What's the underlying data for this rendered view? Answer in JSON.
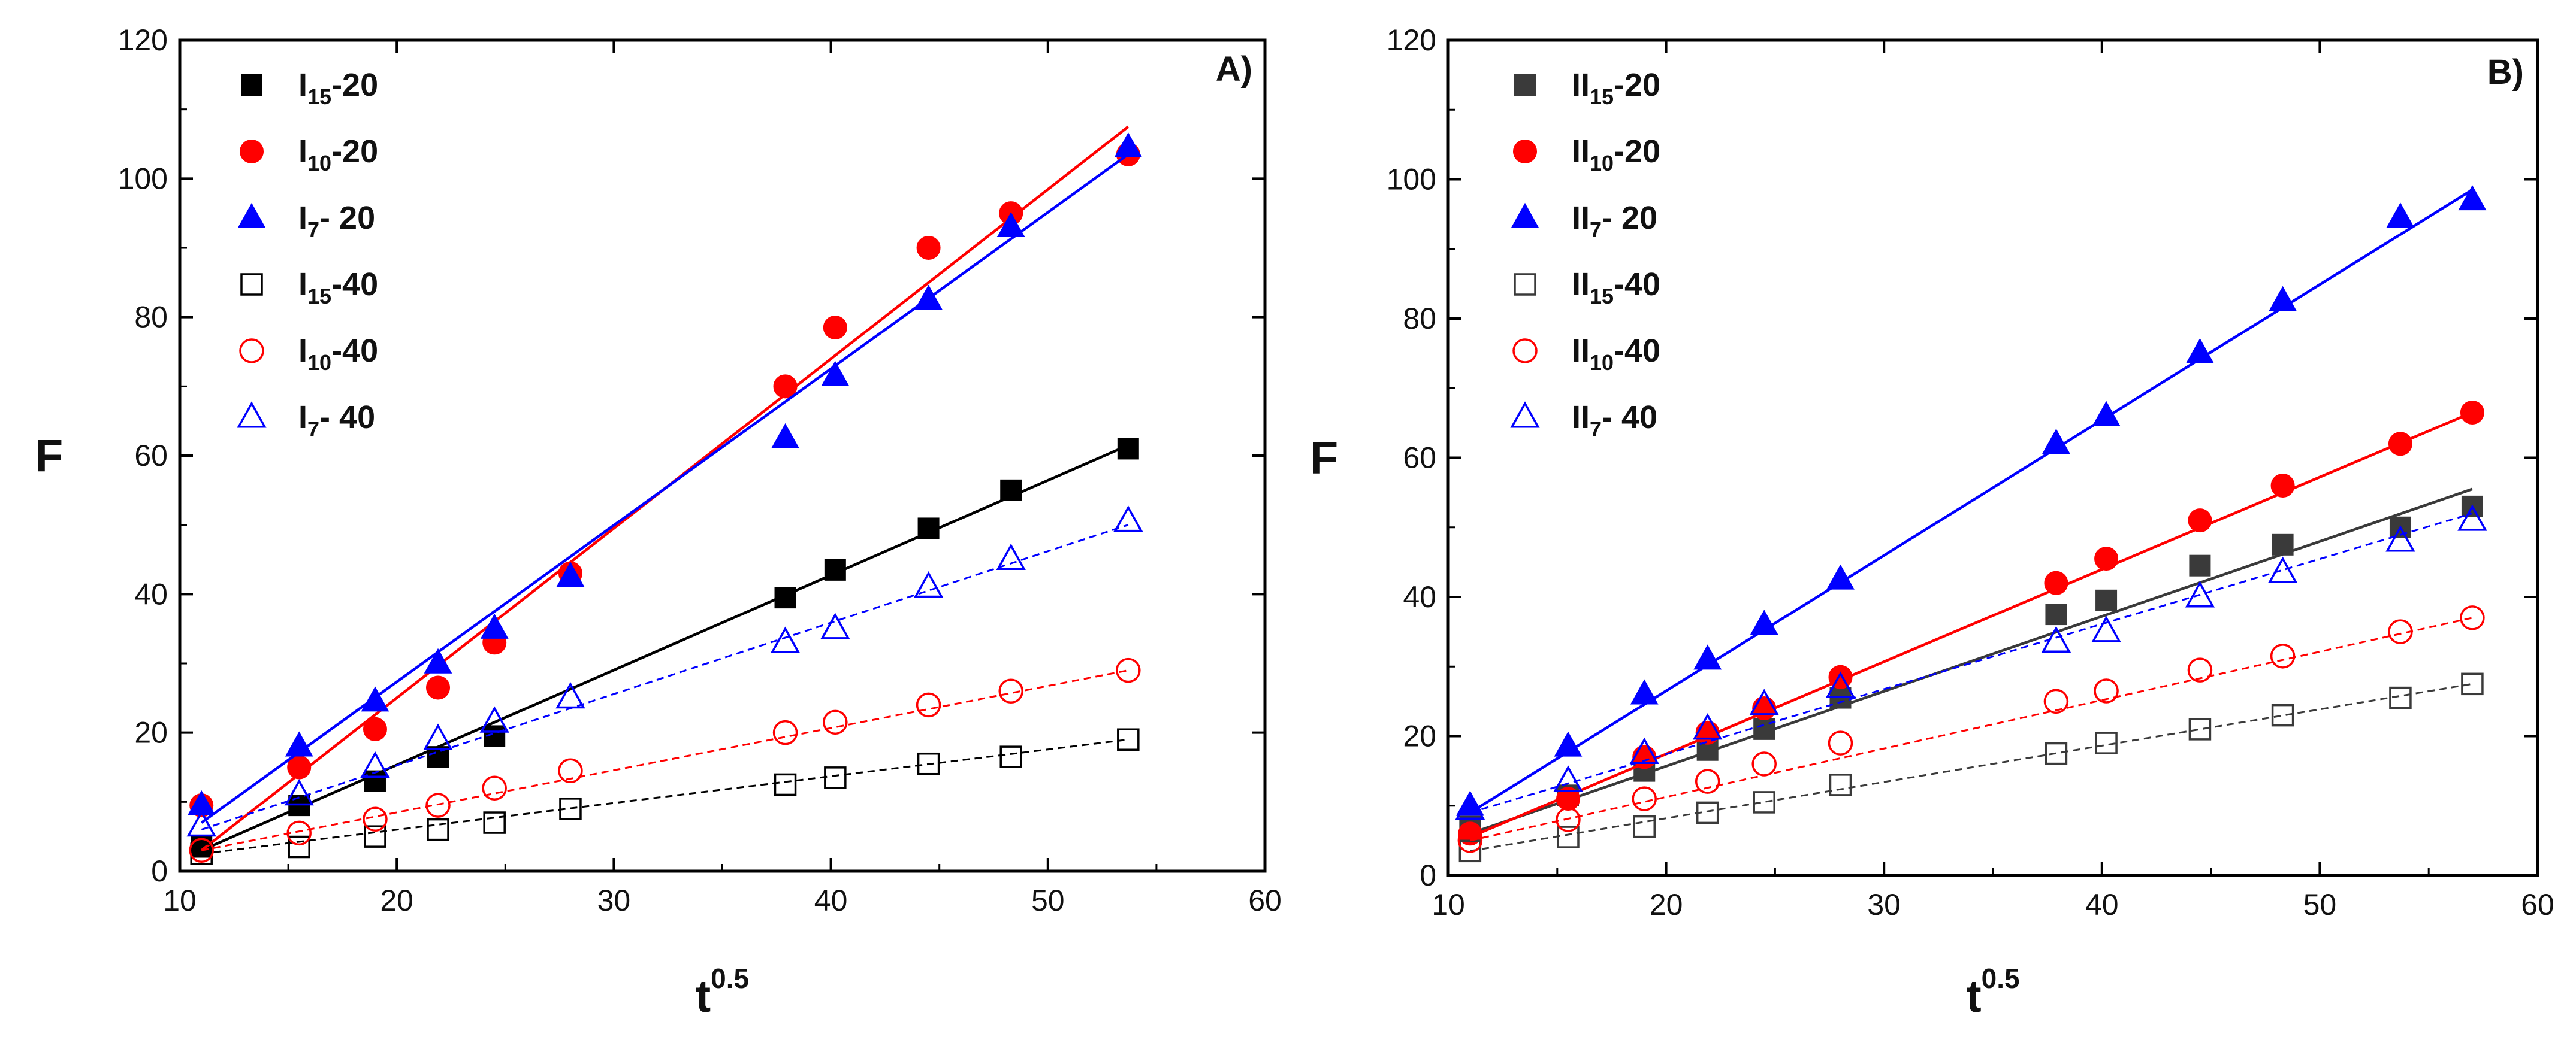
{
  "chart_data": [
    {
      "type": "scatter",
      "panel_label": "A)",
      "xlabel": "t",
      "xlabel_sup": "0.5",
      "ylabel": "F",
      "xlim": [
        10,
        60
      ],
      "ylim": [
        0,
        120
      ],
      "xticks": [
        10,
        20,
        30,
        40,
        50,
        60
      ],
      "yticks": [
        0,
        20,
        40,
        60,
        80,
        100,
        120
      ],
      "grid": false,
      "legend_position": "top-left",
      "series": [
        {
          "name": "I15-20",
          "legend": {
            "base": "I",
            "sub": "15",
            "rest": "-20"
          },
          "color": "#000000",
          "marker": "square",
          "filled": true,
          "line": "solid",
          "x": [
            11.0,
            15.5,
            19.0,
            21.9,
            24.5,
            37.9,
            40.2,
            44.5,
            48.3,
            53.7
          ],
          "y": [
            3.5,
            9.5,
            13.0,
            16.5,
            19.5,
            39.5,
            43.5,
            49.5,
            55.0,
            61.0
          ],
          "fit": [
            [
              11,
              3.0
            ],
            [
              53.7,
              61.5
            ]
          ]
        },
        {
          "name": "I10-20",
          "legend": {
            "base": "I",
            "sub": "10",
            "rest": "-20"
          },
          "color": "#ff0000",
          "marker": "circle",
          "filled": true,
          "line": "solid",
          "x": [
            11.0,
            15.5,
            19.0,
            21.9,
            24.5,
            28.0,
            37.9,
            40.2,
            44.5,
            48.3,
            53.7
          ],
          "y": [
            9.5,
            15.0,
            20.5,
            26.5,
            33.0,
            43.0,
            70.0,
            78.5,
            90.0,
            95.0,
            103.5
          ],
          "fit": [
            [
              11,
              3.0
            ],
            [
              53.7,
              107.5
            ]
          ]
        },
        {
          "name": "I7- 20",
          "legend": {
            "base": "I",
            "sub": "7",
            "rest": "- 20"
          },
          "color": "#0000ff",
          "marker": "triangle",
          "filled": true,
          "line": "solid",
          "x": [
            11.0,
            15.5,
            19.0,
            21.9,
            24.5,
            28.0,
            37.9,
            40.2,
            44.5,
            48.3,
            53.7
          ],
          "y": [
            9.5,
            18.0,
            24.5,
            30.0,
            35.0,
            42.5,
            62.5,
            71.5,
            82.5,
            93.0,
            104.5
          ],
          "fit": [
            [
              11,
              7.0
            ],
            [
              53.7,
              103.5
            ]
          ]
        },
        {
          "name": "I15-40",
          "legend": {
            "base": "I",
            "sub": "15",
            "rest": "-40"
          },
          "color": "#000000",
          "marker": "square",
          "filled": false,
          "line": "dashed",
          "x": [
            11.0,
            15.5,
            19.0,
            21.9,
            24.5,
            28.0,
            37.9,
            40.2,
            44.5,
            48.3,
            53.7
          ],
          "y": [
            2.5,
            3.5,
            5.0,
            6.0,
            7.0,
            9.0,
            12.5,
            13.5,
            15.5,
            16.5,
            19.0
          ],
          "fit": [
            [
              11,
              2.5
            ],
            [
              53.7,
              19.0
            ]
          ]
        },
        {
          "name": "I10-40",
          "legend": {
            "base": "I",
            "sub": "10",
            "rest": "-40"
          },
          "color": "#ff0000",
          "marker": "circle",
          "filled": false,
          "line": "dashed",
          "x": [
            11.0,
            15.5,
            19.0,
            21.9,
            24.5,
            28.0,
            37.9,
            40.2,
            44.5,
            48.3,
            53.7
          ],
          "y": [
            3.0,
            5.5,
            7.5,
            9.5,
            12.0,
            14.5,
            20.0,
            21.5,
            24.0,
            26.0,
            29.0
          ],
          "fit": [
            [
              11,
              3.0
            ],
            [
              53.7,
              29.0
            ]
          ]
        },
        {
          "name": "I7- 40",
          "legend": {
            "base": "I",
            "sub": "7",
            "rest": "- 40"
          },
          "color": "#0000ff",
          "marker": "triangle",
          "filled": false,
          "line": "dashed",
          "x": [
            11.0,
            15.5,
            19.0,
            21.9,
            24.5,
            28.0,
            37.9,
            40.2,
            44.5,
            48.3,
            53.7
          ],
          "y": [
            6.5,
            11.0,
            15.0,
            19.0,
            21.5,
            25.0,
            33.0,
            35.0,
            41.0,
            45.0,
            50.5
          ],
          "fit": [
            [
              11,
              6.0
            ],
            [
              53.7,
              50.0
            ]
          ]
        }
      ]
    },
    {
      "type": "scatter",
      "panel_label": "B)",
      "xlabel": "t",
      "xlabel_sup": "0.5",
      "ylabel": "F",
      "xlim": [
        10,
        60
      ],
      "ylim": [
        0,
        120
      ],
      "xticks": [
        10,
        20,
        30,
        40,
        50,
        60
      ],
      "yticks": [
        0,
        20,
        40,
        60,
        80,
        100,
        120
      ],
      "grid": false,
      "legend_position": "top-left",
      "series": [
        {
          "name": "II15-20",
          "legend": {
            "base": "II",
            "sub": "15",
            "rest": "-20"
          },
          "color": "#3a3a3a",
          "marker": "square",
          "filled": true,
          "line": "solid",
          "x": [
            11.0,
            15.5,
            19.0,
            21.9,
            24.5,
            28.0,
            37.9,
            40.2,
            44.5,
            48.3,
            53.7,
            57.0
          ],
          "y": [
            7.0,
            11.5,
            15.0,
            18.0,
            21.0,
            25.5,
            37.5,
            39.5,
            44.5,
            47.5,
            50.0,
            53.0
          ],
          "fit": [
            [
              11,
              6.0
            ],
            [
              57.0,
              55.5
            ]
          ]
        },
        {
          "name": "II10-20",
          "legend": {
            "base": "II",
            "sub": "10",
            "rest": "-20"
          },
          "color": "#ff0000",
          "marker": "circle",
          "filled": true,
          "line": "solid",
          "x": [
            11.0,
            15.5,
            19.0,
            21.9,
            24.5,
            28.0,
            37.9,
            40.2,
            44.5,
            48.3,
            53.7,
            57.0
          ],
          "y": [
            6.0,
            11.0,
            17.0,
            20.5,
            24.0,
            28.5,
            42.0,
            45.5,
            51.0,
            56.0,
            62.0,
            66.5
          ],
          "fit": [
            [
              11,
              5.5
            ],
            [
              57.0,
              66.5
            ]
          ]
        },
        {
          "name": "II7- 20",
          "legend": {
            "base": "II",
            "sub": "7",
            "rest": "- 20"
          },
          "color": "#0000ff",
          "marker": "triangle",
          "filled": true,
          "line": "solid",
          "x": [
            11.0,
            15.5,
            19.0,
            21.9,
            24.5,
            28.0,
            37.9,
            40.2,
            44.5,
            48.3,
            53.7,
            57.0
          ],
          "y": [
            10.0,
            18.5,
            26.0,
            31.0,
            36.0,
            42.5,
            62.0,
            66.0,
            75.0,
            82.5,
            94.5,
            97.0
          ],
          "fit": [
            [
              11,
              9.0
            ],
            [
              57.0,
              98.5
            ]
          ]
        },
        {
          "name": "II15-40",
          "legend": {
            "base": "II",
            "sub": "15",
            "rest": "-40"
          },
          "color": "#3a3a3a",
          "marker": "square",
          "filled": false,
          "line": "dashed",
          "x": [
            11.0,
            15.5,
            19.0,
            21.9,
            24.5,
            28.0,
            37.9,
            40.2,
            44.5,
            48.3,
            53.7,
            57.0
          ],
          "y": [
            3.5,
            5.5,
            7.0,
            9.0,
            10.5,
            13.0,
            17.5,
            19.0,
            21.0,
            23.0,
            25.5,
            27.5
          ],
          "fit": [
            [
              11,
              3.5
            ],
            [
              57.0,
              27.5
            ]
          ]
        },
        {
          "name": "II10-40",
          "legend": {
            "base": "II",
            "sub": "10",
            "rest": "-40"
          },
          "color": "#ff0000",
          "marker": "circle",
          "filled": false,
          "line": "dashed",
          "x": [
            11.0,
            15.5,
            19.0,
            21.9,
            24.5,
            28.0,
            37.9,
            40.2,
            44.5,
            48.3,
            53.7,
            57.0
          ],
          "y": [
            5.0,
            8.0,
            11.0,
            13.5,
            16.0,
            19.0,
            25.0,
            26.5,
            29.5,
            31.5,
            35.0,
            37.0
          ],
          "fit": [
            [
              11,
              5.0
            ],
            [
              57.0,
              37.0
            ]
          ]
        },
        {
          "name": "II7- 40",
          "legend": {
            "base": "II",
            "sub": "7",
            "rest": "- 40"
          },
          "color": "#0000ff",
          "marker": "triangle",
          "filled": false,
          "line": "dashed",
          "x": [
            11.0,
            15.5,
            19.0,
            21.9,
            24.5,
            28.0,
            37.9,
            40.2,
            44.5,
            48.3,
            53.7,
            57.0
          ],
          "y": [
            9.5,
            13.5,
            17.5,
            21.0,
            24.5,
            27.0,
            33.5,
            35.0,
            40.0,
            43.5,
            48.0,
            51.0
          ],
          "fit": [
            [
              11,
              9.0
            ],
            [
              57.0,
              52.0
            ]
          ]
        }
      ]
    }
  ]
}
